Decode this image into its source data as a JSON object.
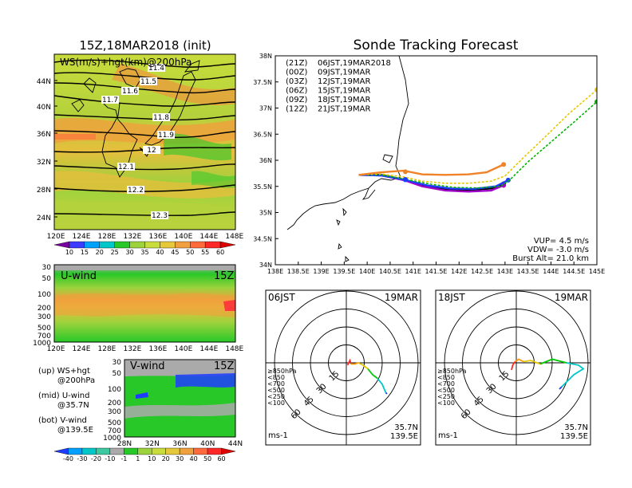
{
  "left": {
    "title": "15Z,18MAR2018 (init)",
    "map_label": "WS(m/s)+hgt(km)@200hPa",
    "lat_ticks": [
      "44N",
      "40N",
      "36N",
      "32N",
      "28N",
      "24N"
    ],
    "lon_ticks": [
      "120E",
      "124E",
      "128E",
      "132E",
      "136E",
      "140E",
      "144E",
      "148E"
    ],
    "contour_labels": [
      "11.4",
      "11.5",
      "11.6",
      "11.7",
      "11.8",
      "11.9",
      "12",
      "12.1",
      "12.2",
      "12.3"
    ],
    "ws_colorbar": [
      "10",
      "15",
      "20",
      "25",
      "30",
      "35",
      "40",
      "45",
      "50",
      "55",
      "60"
    ],
    "uwind_label": "U-wind",
    "uwind_time": "15Z",
    "vwind_label": "V-wind",
    "vwind_time": "15Z",
    "p_ticks": [
      "30",
      "50",
      "100",
      "200",
      "300",
      "500",
      "700",
      "1000"
    ],
    "uwind_lon_ticks": [
      "120E",
      "124E",
      "128E",
      "132E",
      "136E",
      "140E",
      "144E",
      "148E"
    ],
    "vwind_lat_ticks": [
      "28N",
      "32N",
      "36N",
      "40N",
      "44N"
    ],
    "notes": [
      {
        "a": "(up)  WS+hgt",
        "b": "@200hPa"
      },
      {
        "a": "(mid)  U-wind",
        "b": "@35.7N"
      },
      {
        "a": "(bot)  V-wind",
        "b": "@139.5E"
      }
    ],
    "wind_colorbar": [
      "-40",
      "-30",
      "-20",
      "-10",
      "-1",
      "1",
      "10",
      "20",
      "30",
      "40",
      "50",
      "60"
    ]
  },
  "right": {
    "title": "Sonde Tracking Forecast",
    "lat_ticks": [
      "38N",
      "37.5N",
      "37N",
      "36.5N",
      "36N",
      "35.5N",
      "35N",
      "34.5N",
      "34N"
    ],
    "lon_ticks": [
      "138E",
      "138.5E",
      "139E",
      "139.5E",
      "140E",
      "140.5E",
      "141E",
      "141.5E",
      "142E",
      "142.5E",
      "143E",
      "143.5E",
      "144E",
      "144.5E",
      "145E"
    ],
    "legend": [
      {
        "utc": "(21Z)",
        "jst": "06JST,19MAR2018",
        "color": "#000000"
      },
      {
        "utc": "(00Z)",
        "jst": "09JST,19MAR",
        "color": "#a000c8"
      },
      {
        "utc": "(03Z)",
        "jst": "12JST,19MAR",
        "color": "#1e3cff"
      },
      {
        "utc": "(06Z)",
        "jst": "15JST,19MAR",
        "color": "#00b400"
      },
      {
        "utc": "(09Z)",
        "jst": "18JST,19MAR",
        "color": "#e6c800"
      },
      {
        "utc": "(12Z)",
        "jst": "21JST,19MAR",
        "color": "#f08228"
      }
    ],
    "info": [
      "VUP=  4.5 m/s",
      "VDW= -3.0 m/s",
      "Burst Alt= 21.0 km"
    ]
  },
  "hodo_left": {
    "time": "06JST",
    "date": "19MAR",
    "lat": "35.7N",
    "lon": "139.5E",
    "unit": "ms-1"
  },
  "hodo_right": {
    "time": "18JST",
    "date": "19MAR",
    "lat": "35.7N",
    "lon": "139.5E",
    "unit": "ms-1"
  },
  "hodo_rings": [
    "15",
    "30",
    "45",
    "60"
  ],
  "hodo_levels": [
    {
      "label": "≥850hPa",
      "color": "#ff2828"
    },
    {
      "label": "<850",
      "color": "#ff9600"
    },
    {
      "label": "<700",
      "color": "#e6c800"
    },
    {
      "label": "<500",
      "color": "#00c800"
    },
    {
      "label": "<250",
      "color": "#00c8c8"
    },
    {
      "label": "<100",
      "color": "#1e3cff"
    }
  ],
  "chart_data": [
    {
      "type": "line",
      "title": "Sonde Tracking Forecast",
      "xlim": [
        138,
        145
      ],
      "ylim": [
        34,
        38
      ],
      "series": [
        {
          "name": "(21Z) 06JST,19MAR2018",
          "color": "#000000",
          "x": [
            139.82,
            140.3,
            140.8,
            141.2,
            141.7,
            142.2,
            142.7,
            142.97
          ],
          "y": [
            35.72,
            35.72,
            35.63,
            35.52,
            35.45,
            35.43,
            35.46,
            35.55
          ]
        },
        {
          "name": "(00Z) 09JST,19MAR",
          "color": "#a000c8",
          "x": [
            139.82,
            140.3,
            140.8,
            141.2,
            141.7,
            142.2,
            142.7,
            142.97
          ],
          "y": [
            35.72,
            35.71,
            35.62,
            35.5,
            35.42,
            35.4,
            35.42,
            35.52
          ]
        },
        {
          "name": "(03Z) 12JST,19MAR",
          "color": "#1e3cff",
          "x": [
            139.82,
            140.3,
            140.8,
            141.3,
            141.8,
            142.3,
            142.8,
            143.07
          ],
          "y": [
            35.72,
            35.71,
            35.63,
            35.52,
            35.46,
            35.45,
            35.5,
            35.62
          ]
        },
        {
          "name": "(06Z) 15JST,19MAR",
          "color": "#00b400",
          "x": [
            139.82,
            140.3,
            140.8,
            141.4,
            141.9,
            142.4,
            142.9,
            143.1,
            143.5,
            144.0,
            144.5,
            145.0
          ],
          "y": [
            35.72,
            35.72,
            35.64,
            35.54,
            35.48,
            35.47,
            35.5,
            35.62,
            35.97,
            36.35,
            36.73,
            37.12
          ]
        },
        {
          "name": "(09Z) 18JST,19MAR",
          "color": "#e6c800",
          "x": [
            139.82,
            140.3,
            140.8,
            141.2,
            141.7,
            142.2,
            142.7,
            143.0,
            143.4,
            143.9,
            144.4,
            145.0
          ],
          "y": [
            35.72,
            35.74,
            35.68,
            35.6,
            35.56,
            35.56,
            35.6,
            35.7,
            36.05,
            36.47,
            36.9,
            37.35
          ]
        },
        {
          "name": "(12Z) 21JST,19MAR",
          "color": "#f08228",
          "x": [
            139.82,
            140.3,
            140.8,
            141.2,
            141.7,
            142.2,
            142.6,
            142.97
          ],
          "y": [
            35.72,
            35.77,
            35.8,
            35.73,
            35.72,
            35.73,
            35.77,
            35.92
          ]
        }
      ]
    }
  ]
}
